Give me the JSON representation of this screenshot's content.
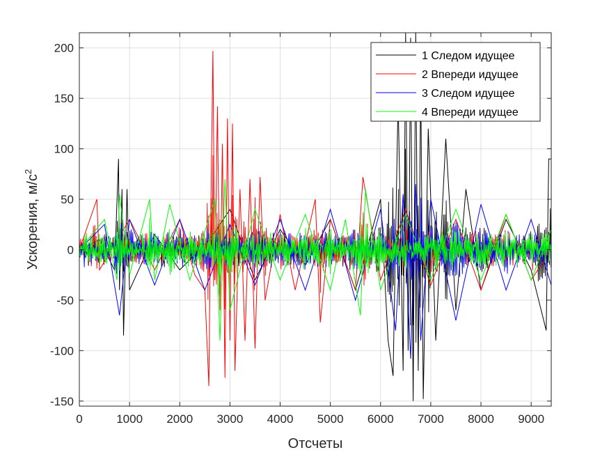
{
  "chart_data": {
    "type": "line",
    "xlabel": "Отсчеты",
    "ylabel_main": "Ускорения, м/с",
    "ylabel_sup": "2",
    "xlim": [
      0,
      9400
    ],
    "ylim": [
      -155,
      215
    ],
    "xticks": [
      0,
      1000,
      2000,
      3000,
      4000,
      5000,
      6000,
      7000,
      8000,
      9000
    ],
    "yticks": [
      -150,
      -100,
      -50,
      0,
      50,
      100,
      150,
      200
    ],
    "grid": true,
    "legend_position": "top-right",
    "series": [
      {
        "name": "1 Следом идущее",
        "color": "#000000",
        "x": [
          0,
          400,
          700,
          780,
          800,
          850,
          880,
          950,
          1000,
          1500,
          2000,
          2600,
          3000,
          3500,
          4000,
          4500,
          5000,
          5500,
          6000,
          6150,
          6250,
          6350,
          6450,
          6500,
          6550,
          6600,
          6650,
          6700,
          6750,
          6800,
          6850,
          6950,
          7100,
          7300,
          7500,
          7700,
          8000,
          8500,
          9000,
          9300,
          9350,
          9400
        ],
        "y": [
          0,
          10,
          -20,
          90,
          -40,
          60,
          -85,
          60,
          -40,
          15,
          -20,
          10,
          40,
          -30,
          20,
          -15,
          30,
          -40,
          50,
          -90,
          -125,
          150,
          -120,
          215,
          -100,
          210,
          -150,
          215,
          -120,
          170,
          -148,
          120,
          -90,
          110,
          -60,
          60,
          -40,
          30,
          -20,
          -80,
          90,
          90
        ]
      },
      {
        "name": "2 Впереди идущее",
        "color": "#ff0000",
        "x": [
          0,
          350,
          400,
          1000,
          1500,
          2000,
          2300,
          2500,
          2580,
          2600,
          2660,
          2700,
          2750,
          2800,
          2850,
          2900,
          2950,
          3000,
          3050,
          3100,
          3200,
          3300,
          3400,
          3500,
          3600,
          3700,
          4000,
          4300,
          4700,
          4800,
          5000,
          5500,
          5650,
          6000,
          6500,
          7000,
          7500,
          8000,
          8500,
          9000,
          9400
        ],
        "y": [
          0,
          50,
          -20,
          30,
          -20,
          30,
          -25,
          -40,
          -135,
          -40,
          197,
          -30,
          142,
          -60,
          105,
          -127,
          130,
          -90,
          125,
          -120,
          60,
          -90,
          70,
          -98,
          72,
          -50,
          35,
          -40,
          50,
          -72,
          30,
          -40,
          72,
          -30,
          40,
          -35,
          30,
          -40,
          35,
          -30,
          0
        ]
      },
      {
        "name": "3 Следом идущее",
        "color": "#0000ff",
        "x": [
          0,
          500,
          800,
          1000,
          1500,
          2000,
          2500,
          3000,
          3500,
          4000,
          4500,
          5000,
          5500,
          6000,
          6300,
          6450,
          6600,
          6700,
          6800,
          7000,
          7500,
          8000,
          8500,
          9000,
          9400
        ],
        "y": [
          0,
          25,
          -65,
          30,
          -35,
          30,
          -40,
          25,
          -35,
          30,
          -40,
          40,
          -50,
          40,
          -80,
          55,
          -108,
          65,
          -90,
          50,
          -70,
          45,
          -40,
          30,
          -35
        ]
      },
      {
        "name": "4 Впереди идущее",
        "color": "#00ff00",
        "x": [
          0,
          500,
          750,
          800,
          1000,
          1400,
          1500,
          1800,
          2200,
          2700,
          2800,
          2900,
          3000,
          3500,
          4000,
          4500,
          5000,
          5300,
          5600,
          5700,
          6000,
          6500,
          7000,
          7500,
          8000,
          8500,
          9000,
          9400
        ],
        "y": [
          0,
          30,
          -30,
          55,
          -25,
          50,
          -30,
          45,
          -30,
          50,
          -90,
          70,
          -60,
          40,
          -30,
          35,
          -40,
          30,
          -65,
          60,
          -40,
          35,
          -30,
          40,
          -30,
          35,
          -30,
          20
        ]
      }
    ]
  }
}
